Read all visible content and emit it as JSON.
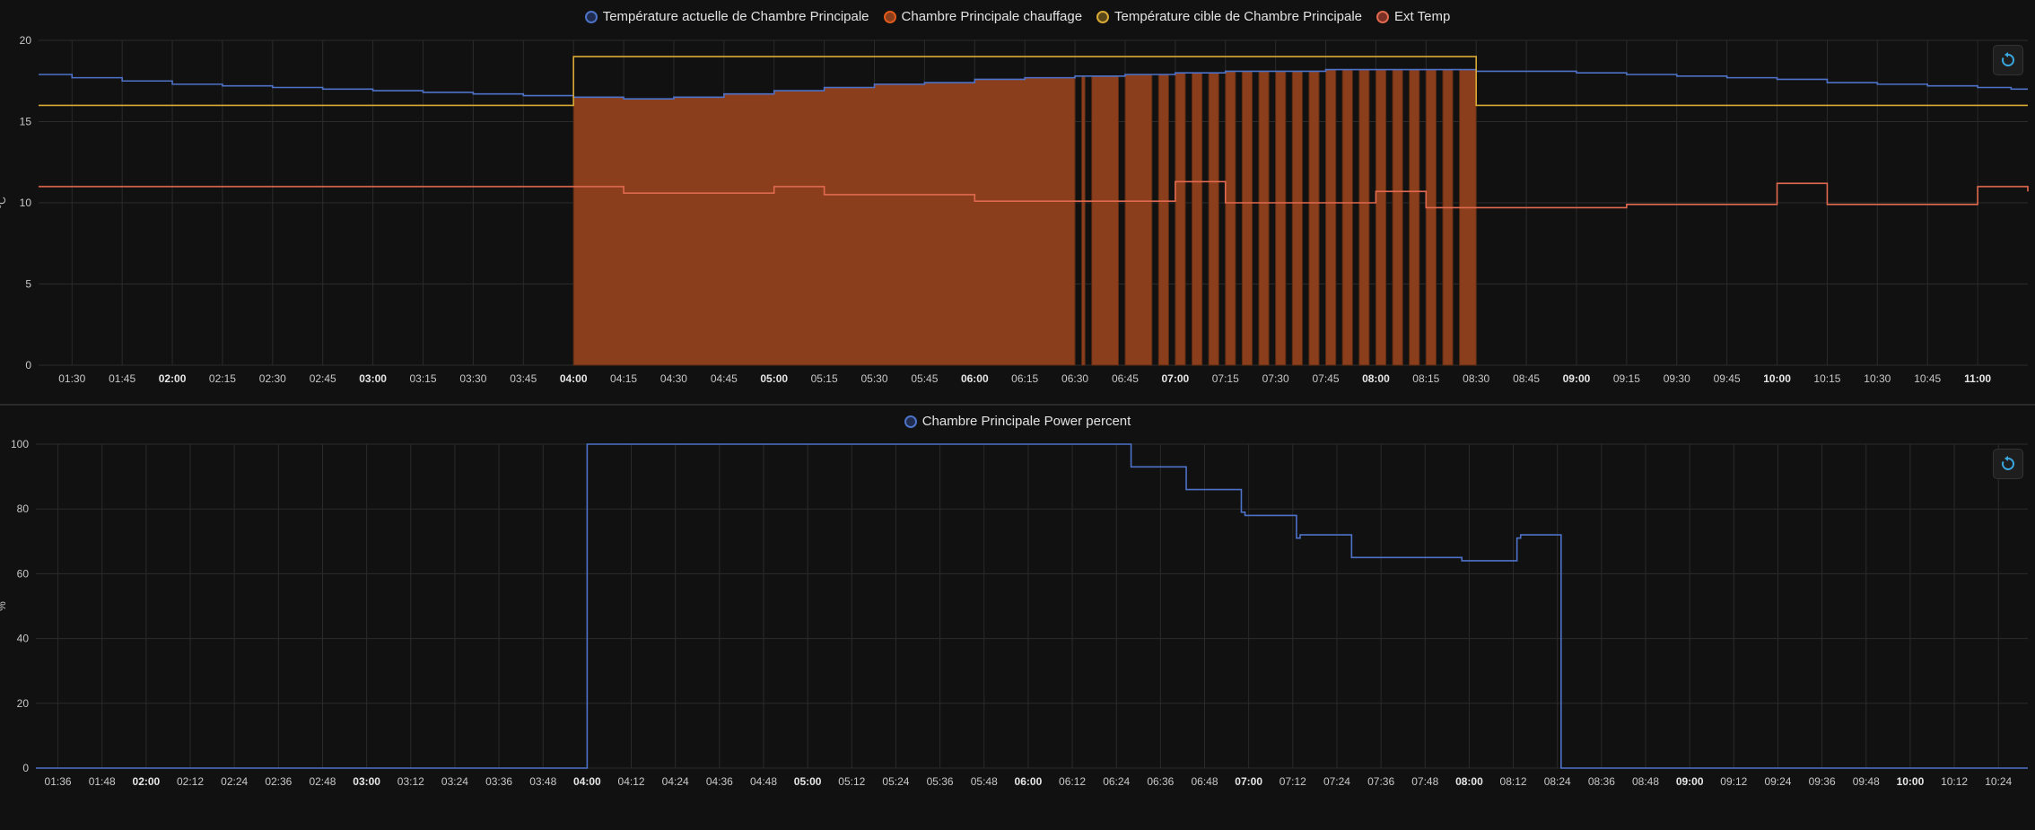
{
  "colors": {
    "current_temp": "#4d72c8",
    "heating": "#e05a1b",
    "heating_fill": "#8a3e1c",
    "target_temp": "#d9aa36",
    "ext_temp": "#e0694f",
    "power": "#4d72c8",
    "grid": "#2b2b2b",
    "background": "#111111"
  },
  "icons": {
    "reset": "reset-zoom-icon"
  },
  "chart_data": [
    {
      "type": "line",
      "ylabel": "°C",
      "ylim": [
        0,
        20
      ],
      "yticks": [
        0,
        5,
        10,
        15,
        20
      ],
      "xlim": [
        "01:20",
        "11:15"
      ],
      "grid": true,
      "legend_position": "top",
      "xticks": [
        "01:30",
        "01:45",
        "02:00",
        "02:15",
        "02:30",
        "02:45",
        "03:00",
        "03:15",
        "03:30",
        "03:45",
        "04:00",
        "04:15",
        "04:30",
        "04:45",
        "05:00",
        "05:15",
        "05:30",
        "05:45",
        "06:00",
        "06:15",
        "06:30",
        "06:45",
        "07:00",
        "07:15",
        "07:30",
        "07:45",
        "08:00",
        "08:15",
        "08:30",
        "08:45",
        "09:00",
        "09:15",
        "09:30",
        "09:45",
        "10:00",
        "10:15",
        "10:30",
        "10:45",
        "11:00"
      ],
      "xticks_bold": [
        "02:00",
        "03:00",
        "04:00",
        "05:00",
        "06:00",
        "07:00",
        "08:00",
        "09:00",
        "10:00",
        "11:00"
      ],
      "series": [
        {
          "name": "Température actuelle de Chambre Principale",
          "key": "current_temp",
          "step": true,
          "points": [
            [
              "01:20",
              17.9
            ],
            [
              "01:30",
              17.7
            ],
            [
              "01:45",
              17.5
            ],
            [
              "02:00",
              17.3
            ],
            [
              "02:15",
              17.2
            ],
            [
              "02:30",
              17.1
            ],
            [
              "02:45",
              17.0
            ],
            [
              "03:00",
              16.9
            ],
            [
              "03:15",
              16.8
            ],
            [
              "03:30",
              16.7
            ],
            [
              "03:45",
              16.6
            ],
            [
              "04:00",
              16.5
            ],
            [
              "04:15",
              16.4
            ],
            [
              "04:30",
              16.5
            ],
            [
              "04:45",
              16.7
            ],
            [
              "05:00",
              16.9
            ],
            [
              "05:15",
              17.1
            ],
            [
              "05:30",
              17.3
            ],
            [
              "05:45",
              17.4
            ],
            [
              "06:00",
              17.6
            ],
            [
              "06:15",
              17.7
            ],
            [
              "06:30",
              17.8
            ],
            [
              "06:45",
              17.9
            ],
            [
              "07:00",
              18.0
            ],
            [
              "07:15",
              18.1
            ],
            [
              "07:30",
              18.1
            ],
            [
              "07:45",
              18.2
            ],
            [
              "08:00",
              18.2
            ],
            [
              "08:15",
              18.2
            ],
            [
              "08:30",
              18.1
            ],
            [
              "08:45",
              18.1
            ],
            [
              "09:00",
              18.0
            ],
            [
              "09:15",
              17.9
            ],
            [
              "09:30",
              17.8
            ],
            [
              "09:45",
              17.7
            ],
            [
              "10:00",
              17.6
            ],
            [
              "10:15",
              17.4
            ],
            [
              "10:30",
              17.3
            ],
            [
              "10:45",
              17.2
            ],
            [
              "11:00",
              17.1
            ],
            [
              "11:10",
              17.0
            ],
            [
              "11:15",
              17.0
            ]
          ]
        },
        {
          "name": "Chambre Principale chauffage",
          "key": "heating",
          "type": "area",
          "on_intervals": [
            [
              "04:00",
              "06:30"
            ],
            [
              "06:32",
              "06:33"
            ],
            [
              "06:35",
              "06:43"
            ],
            [
              "06:45",
              "06:53"
            ],
            [
              "06:55",
              "06:58"
            ],
            [
              "07:00",
              "07:03"
            ],
            [
              "07:05",
              "07:08"
            ],
            [
              "07:10",
              "07:13"
            ],
            [
              "07:15",
              "07:18"
            ],
            [
              "07:20",
              "07:23"
            ],
            [
              "07:25",
              "07:28"
            ],
            [
              "07:30",
              "07:33"
            ],
            [
              "07:35",
              "07:38"
            ],
            [
              "07:40",
              "07:43"
            ],
            [
              "07:45",
              "07:48"
            ],
            [
              "07:50",
              "07:53"
            ],
            [
              "07:55",
              "07:58"
            ],
            [
              "08:00",
              "08:03"
            ],
            [
              "08:05",
              "08:08"
            ],
            [
              "08:10",
              "08:13"
            ],
            [
              "08:15",
              "08:18"
            ],
            [
              "08:20",
              "08:23"
            ],
            [
              "08:25",
              "08:30"
            ]
          ]
        },
        {
          "name": "Température cible de Chambre Principale",
          "key": "target_temp",
          "step": true,
          "points": [
            [
              "01:20",
              16.0
            ],
            [
              "04:00",
              19.0
            ],
            [
              "08:30",
              16.0
            ],
            [
              "11:15",
              16.0
            ]
          ]
        },
        {
          "name": "Ext Temp",
          "key": "ext_temp",
          "step": true,
          "points": [
            [
              "01:20",
              11.0
            ],
            [
              "04:00",
              11.0
            ],
            [
              "04:15",
              10.6
            ],
            [
              "05:00",
              11.0
            ],
            [
              "05:15",
              10.5
            ],
            [
              "06:00",
              10.1
            ],
            [
              "06:30",
              10.1
            ],
            [
              "07:00",
              11.3
            ],
            [
              "07:15",
              10.0
            ],
            [
              "07:45",
              10.0
            ],
            [
              "08:00",
              10.7
            ],
            [
              "08:15",
              9.7
            ],
            [
              "09:00",
              9.7
            ],
            [
              "09:15",
              9.9
            ],
            [
              "09:30",
              9.9
            ],
            [
              "10:00",
              11.2
            ],
            [
              "10:15",
              9.9
            ],
            [
              "11:00",
              11.0
            ],
            [
              "11:15",
              10.7
            ]
          ]
        }
      ]
    },
    {
      "type": "line",
      "ylabel": "%",
      "ylim": [
        0,
        100
      ],
      "yticks": [
        0,
        20,
        40,
        60,
        80,
        100
      ],
      "xlim": [
        "01:30",
        "10:32"
      ],
      "grid": true,
      "legend_position": "top",
      "xticks": [
        "01:36",
        "01:48",
        "02:00",
        "02:12",
        "02:24",
        "02:36",
        "02:48",
        "03:00",
        "03:12",
        "03:24",
        "03:36",
        "03:48",
        "04:00",
        "04:12",
        "04:24",
        "04:36",
        "04:48",
        "05:00",
        "05:12",
        "05:24",
        "05:36",
        "05:48",
        "06:00",
        "06:12",
        "06:24",
        "06:36",
        "06:48",
        "07:00",
        "07:12",
        "07:24",
        "07:36",
        "07:48",
        "08:00",
        "08:12",
        "08:24",
        "08:36",
        "08:48",
        "09:00",
        "09:12",
        "09:24",
        "09:36",
        "09:48",
        "10:00",
        "10:12",
        "10:24"
      ],
      "xticks_bold": [
        "02:00",
        "03:00",
        "04:00",
        "05:00",
        "06:00",
        "07:00",
        "08:00",
        "09:00",
        "10:00"
      ],
      "series": [
        {
          "name": "Chambre Principale Power percent",
          "key": "power",
          "step": true,
          "points": [
            [
              "01:30",
              0
            ],
            [
              "04:00",
              100
            ],
            [
              "06:28",
              93
            ],
            [
              "06:43",
              86
            ],
            [
              "06:58",
              79
            ],
            [
              "06:59",
              78
            ],
            [
              "07:13",
              71
            ],
            [
              "07:14",
              72
            ],
            [
              "07:28",
              65
            ],
            [
              "07:58",
              64
            ],
            [
              "08:13",
              71
            ],
            [
              "08:14",
              72
            ],
            [
              "08:25",
              0
            ],
            [
              "10:32",
              0
            ]
          ]
        }
      ]
    }
  ]
}
